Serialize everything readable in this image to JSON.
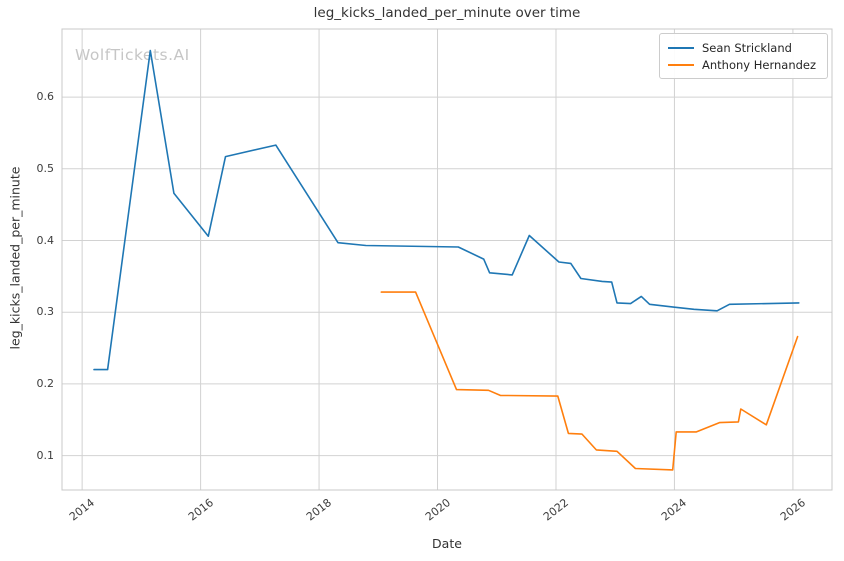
{
  "watermark": "WolfTickets.AI",
  "chart_data": {
    "type": "line",
    "title": "leg_kicks_landed_per_minute over time",
    "xlabel": "Date",
    "ylabel": "leg_kicks_landed_per_minute",
    "xlim": [
      2013.66,
      2026.66
    ],
    "ylim": [
      0.052,
      0.695
    ],
    "x_ticks": [
      2014,
      2016,
      2018,
      2020,
      2022,
      2024,
      2026
    ],
    "y_ticks": [
      0.1,
      0.2,
      0.3,
      0.4,
      0.5,
      0.6
    ],
    "grid": true,
    "legend_position": "upper right",
    "colors": {
      "grid": "#d2d2d2",
      "spine": "#c8c8c8",
      "series_blue": "#1f77b4",
      "series_orange": "#ff7f0e"
    },
    "series": [
      {
        "name": "Sean Strickland",
        "color": "#1f77b4",
        "points": [
          [
            2014.2,
            0.22
          ],
          [
            2014.43,
            0.22
          ],
          [
            2015.15,
            0.665
          ],
          [
            2015.55,
            0.466
          ],
          [
            2016.13,
            0.406
          ],
          [
            2016.42,
            0.517
          ],
          [
            2017.27,
            0.533
          ],
          [
            2018.32,
            0.397
          ],
          [
            2018.79,
            0.393
          ],
          [
            2020.35,
            0.391
          ],
          [
            2020.78,
            0.374
          ],
          [
            2020.88,
            0.355
          ],
          [
            2021.26,
            0.352
          ],
          [
            2021.55,
            0.407
          ],
          [
            2022.05,
            0.37
          ],
          [
            2022.25,
            0.368
          ],
          [
            2022.42,
            0.347
          ],
          [
            2022.78,
            0.343
          ],
          [
            2022.94,
            0.342
          ],
          [
            2023.03,
            0.313
          ],
          [
            2023.26,
            0.312
          ],
          [
            2023.44,
            0.322
          ],
          [
            2023.58,
            0.311
          ],
          [
            2024.0,
            0.307
          ],
          [
            2024.33,
            0.304
          ],
          [
            2024.72,
            0.302
          ],
          [
            2024.93,
            0.311
          ],
          [
            2026.1,
            0.313
          ]
        ]
      },
      {
        "name": "Anthony Hernandez",
        "color": "#ff7f0e",
        "points": [
          [
            2019.05,
            0.328
          ],
          [
            2019.63,
            0.328
          ],
          [
            2020.32,
            0.192
          ],
          [
            2020.86,
            0.191
          ],
          [
            2021.06,
            0.184
          ],
          [
            2022.03,
            0.183
          ],
          [
            2022.21,
            0.131
          ],
          [
            2022.44,
            0.13
          ],
          [
            2022.68,
            0.108
          ],
          [
            2023.03,
            0.106
          ],
          [
            2023.34,
            0.082
          ],
          [
            2023.97,
            0.08
          ],
          [
            2024.03,
            0.133
          ],
          [
            2024.37,
            0.133
          ],
          [
            2024.76,
            0.146
          ],
          [
            2025.08,
            0.147
          ],
          [
            2025.12,
            0.165
          ],
          [
            2025.55,
            0.143
          ],
          [
            2026.08,
            0.266
          ]
        ]
      }
    ]
  }
}
